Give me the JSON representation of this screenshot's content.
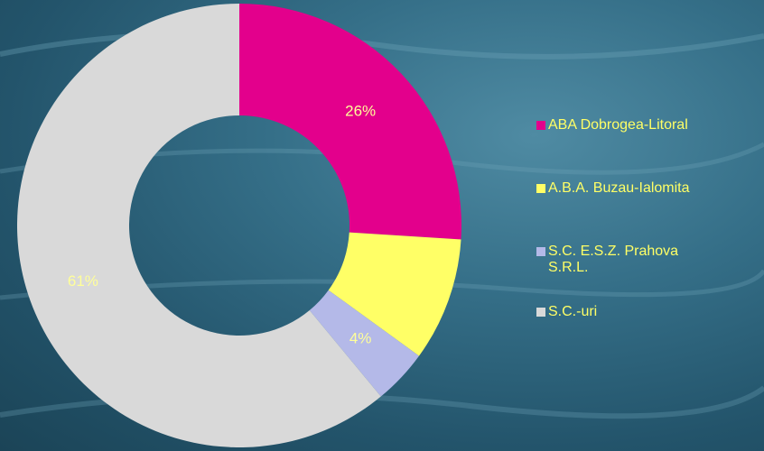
{
  "chart_data": {
    "type": "donut",
    "categories": [
      "ABA Dobrogea-Litoral",
      "A.B.A. Buzau-Ialomita",
      "S.C. E.S.Z. Prahova S.R.L.",
      "S.C.-uri"
    ],
    "values": [
      26,
      9,
      4,
      61
    ],
    "value_labels": [
      "26%",
      null,
      "4%",
      "61%"
    ],
    "colors": [
      "#e3008c",
      "#ffff66",
      "#b4b9e8",
      "#d9d9d9"
    ],
    "legend": "right"
  }
}
